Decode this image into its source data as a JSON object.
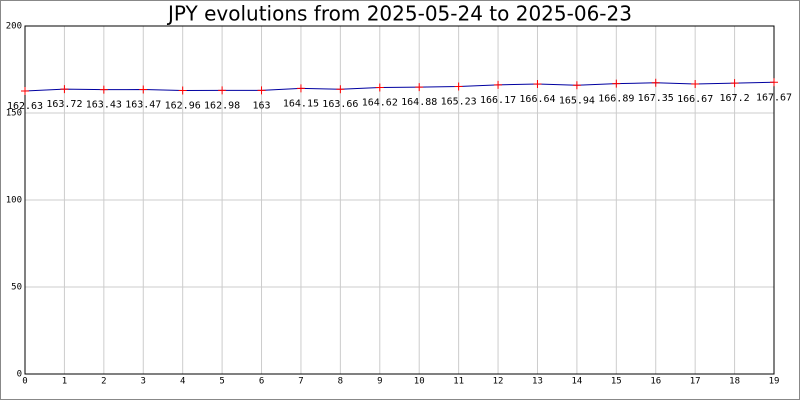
{
  "chart_data": {
    "type": "line",
    "title": "JPY evolutions from 2025-05-24 to 2025-06-23",
    "x": [
      0,
      1,
      2,
      3,
      4,
      5,
      6,
      7,
      8,
      9,
      10,
      11,
      12,
      13,
      14,
      15,
      16,
      17,
      18,
      19
    ],
    "values": [
      162.63,
      163.72,
      163.43,
      163.47,
      162.96,
      162.98,
      163,
      164.15,
      163.66,
      164.62,
      164.88,
      165.23,
      166.17,
      166.64,
      165.94,
      166.89,
      167.35,
      166.67,
      167.2,
      167.67
    ],
    "line_color": "#0000a0",
    "marker_color": "#ff0000",
    "xlim": [
      0,
      19
    ],
    "xticks": [
      0,
      1,
      2,
      3,
      4,
      5,
      6,
      7,
      8,
      9,
      10,
      11,
      12,
      13,
      14,
      15,
      16,
      17,
      18,
      19
    ],
    "ylim": [
      0,
      200
    ],
    "yticks": [
      0,
      50,
      100,
      150,
      200
    ],
    "grid": true
  }
}
